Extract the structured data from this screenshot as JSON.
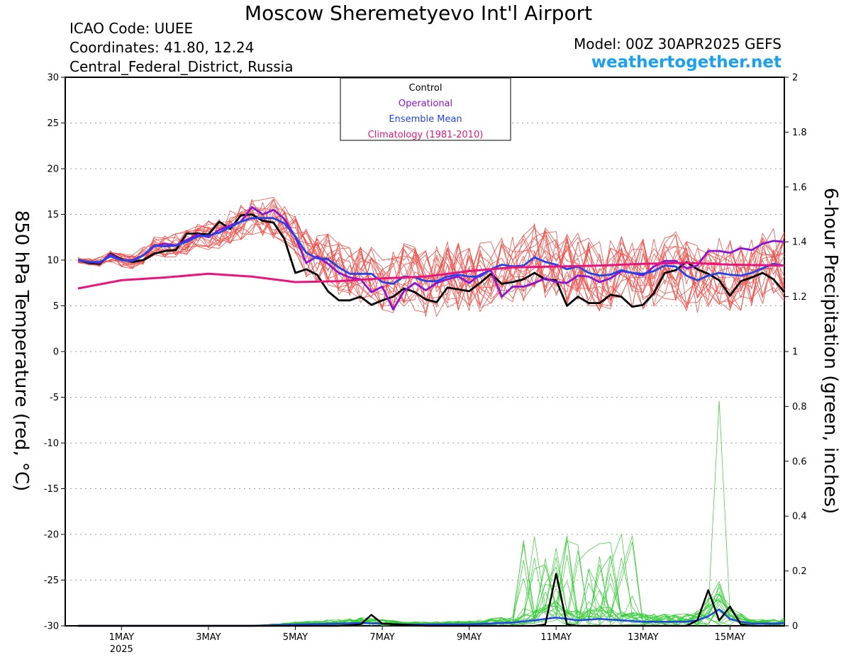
{
  "header": {
    "title": "Moscow Sheremetyevo Int'l Airport",
    "icao": "ICAO Code: UUEE",
    "coordinates": "Coordinates: 41.80, 12.24",
    "region": "Central_Federal_District, Russia",
    "model": "Model: 00Z 30APR2025 GEFS",
    "site": "weathertogether.net"
  },
  "chart_data": {
    "type": "line",
    "title": "Moscow Sheremetyevo Int'l Airport",
    "ylabel": "850 hPa Temperature (red, °C)",
    "y2label": "6-hour Precipitation (green, inches)",
    "xlim": [
      "2025-04-30T00Z",
      "2025-05-16T06Z"
    ],
    "ylim": [
      -30,
      30
    ],
    "y2lim": [
      0,
      2
    ],
    "grid": true,
    "legend_position": "top-center",
    "yticks": [
      "30",
      "25",
      "20",
      "15",
      "10",
      "5",
      "0",
      "-5",
      "-10",
      "-15",
      "-20",
      "-25",
      "-30"
    ],
    "y2ticks": [
      "2",
      "1.8",
      "1.6",
      "1.4",
      "1.2",
      "1",
      "0.8",
      "0.6",
      "0.4",
      "0.2",
      "0"
    ],
    "xticks": [
      {
        "label": "1MAY",
        "sub": "2025",
        "x": "2025-05-01"
      },
      {
        "label": "3MAY",
        "sub": "",
        "x": "2025-05-03"
      },
      {
        "label": "5MAY",
        "sub": "",
        "x": "2025-05-05"
      },
      {
        "label": "7MAY",
        "sub": "",
        "x": "2025-05-07"
      },
      {
        "label": "9MAY",
        "sub": "",
        "x": "2025-05-09"
      },
      {
        "label": "11MAY",
        "sub": "",
        "x": "2025-05-11"
      },
      {
        "label": "13MAY",
        "sub": "",
        "x": "2025-05-13"
      },
      {
        "label": "15MAY",
        "sub": "",
        "x": "2025-05-15"
      }
    ],
    "legend": [
      {
        "label": "Control",
        "color": "#000000"
      },
      {
        "label": "Operational",
        "color": "#8a14d6"
      },
      {
        "label": "Ensemble Mean",
        "color": "#2244e8"
      },
      {
        "label": "Climatology (1981-2010)",
        "color": "#e8157e"
      }
    ],
    "colors": {
      "members": "#f0504a",
      "precip": "#33cc33"
    },
    "day_offset_of_first_x": 0,
    "series": [
      {
        "name": "Control",
        "color": "#000000",
        "x": [
          0,
          0.25,
          0.5,
          0.75,
          1,
          1.25,
          1.5,
          1.75,
          2,
          2.25,
          2.5,
          2.75,
          3,
          3.25,
          3.5,
          3.75,
          4,
          4.25,
          4.5,
          4.75,
          5,
          5.25,
          5.5,
          5.75,
          6,
          6.25,
          6.5,
          6.75,
          7,
          7.25,
          7.5,
          7.75,
          8,
          8.25,
          8.5,
          8.75,
          9,
          9.25,
          9.5,
          9.75,
          10,
          10.25,
          10.5,
          10.75,
          11,
          11.25,
          11.5,
          11.75,
          12,
          12.25,
          12.5,
          12.75,
          13,
          13.25,
          13.5,
          13.75,
          14,
          14.25,
          14.5,
          14.75,
          15,
          15.25,
          15.5,
          15.75,
          16,
          16.25
        ],
        "values": [
          10,
          9.7,
          9.6,
          10.7,
          10.1,
          9.8,
          10.0,
          10.7,
          11.0,
          11.1,
          12.9,
          12.9,
          12.8,
          14.2,
          13.4,
          14.9,
          15.0,
          14.3,
          14.1,
          12.3,
          8.6,
          9.0,
          8.4,
          6.6,
          5.6,
          5.6,
          6.0,
          5.1,
          5.6,
          6.0,
          6.9,
          6.5,
          5.7,
          5.4,
          7.0,
          6.8,
          6.6,
          7.5,
          8.5,
          7.4,
          7.6,
          7.9,
          8.6,
          7.9,
          7.8,
          5.0,
          6.0,
          5.3,
          5.3,
          6.2,
          6.0,
          4.9,
          5.1,
          6.4,
          8.6,
          8.9,
          9.8,
          9.0,
          8.5,
          7.8,
          6.1,
          7.7,
          8.1,
          8.6,
          7.9,
          6.5
        ]
      },
      {
        "name": "Operational",
        "color": "#8a14d6",
        "x": [
          0,
          0.25,
          0.5,
          0.75,
          1,
          1.25,
          1.5,
          1.75,
          2,
          2.25,
          2.5,
          2.75,
          3,
          3.25,
          3.5,
          3.75,
          4,
          4.25,
          4.5,
          4.75,
          5,
          5.25,
          5.5,
          5.75,
          6,
          6.25,
          6.5,
          6.75,
          7,
          7.25,
          7.5,
          7.75,
          8,
          8.25,
          8.5,
          8.75,
          9,
          9.25,
          9.5,
          9.75,
          10,
          10.25,
          10.5,
          10.75,
          11,
          11.25,
          11.5,
          11.75,
          12,
          12.25,
          12.5,
          12.75,
          13,
          13.25,
          13.5,
          13.75,
          14,
          14.25,
          14.5,
          14.75,
          15,
          15.25,
          15.5,
          15.75,
          16,
          16.25
        ],
        "values": [
          10,
          9.8,
          9.7,
          10.6,
          10.0,
          10.0,
          10.5,
          11.5,
          11.8,
          11.6,
          12.2,
          12.8,
          12.5,
          13.3,
          13.8,
          14.2,
          15.8,
          15.0,
          15.5,
          14.5,
          12.5,
          9.7,
          10.4,
          9.6,
          8.6,
          8.1,
          7.9,
          6.5,
          7.1,
          4.6,
          6.6,
          7.5,
          6.7,
          7.5,
          7.9,
          8.2,
          7.5,
          8.4,
          8.9,
          6.0,
          7.1,
          7.1,
          7.5,
          8.0,
          7.6,
          7.5,
          8.3,
          8.2,
          7.6,
          8.0,
          8.8,
          8.6,
          8.3,
          9.3,
          9.9,
          9.9,
          9.1,
          9.4,
          11.0,
          11.0,
          10.8,
          11.3,
          11.1,
          11.8,
          12.1,
          12.0
        ]
      },
      {
        "name": "Ensemble Mean",
        "color": "#2244e8",
        "x": [
          0,
          0.25,
          0.5,
          0.75,
          1,
          1.25,
          1.5,
          1.75,
          2,
          2.25,
          2.5,
          2.75,
          3,
          3.25,
          3.5,
          3.75,
          4,
          4.25,
          4.5,
          4.75,
          5,
          5.25,
          5.5,
          5.75,
          6,
          6.25,
          6.5,
          6.75,
          7,
          7.25,
          7.5,
          7.75,
          8,
          8.25,
          8.5,
          8.75,
          9,
          9.25,
          9.5,
          9.75,
          10,
          10.25,
          10.5,
          10.75,
          11,
          11.25,
          11.5,
          11.75,
          12,
          12.25,
          12.5,
          12.75,
          13,
          13.25,
          13.5,
          13.75,
          14,
          14.25,
          14.5,
          14.75,
          15,
          15.25,
          15.5,
          15.75,
          16,
          16.25
        ],
        "values": [
          10,
          9.8,
          9.8,
          10.4,
          10.0,
          9.9,
          10.5,
          11.6,
          11.5,
          11.6,
          12.0,
          12.6,
          12.7,
          13.0,
          13.6,
          14.2,
          14.6,
          14.6,
          14.6,
          14.0,
          12.6,
          10.8,
          10.2,
          10.1,
          9.2,
          8.5,
          8.5,
          8.5,
          7.6,
          7.4,
          8.2,
          8.1,
          7.7,
          7.7,
          8.2,
          8.4,
          8.2,
          8.2,
          9.0,
          9.5,
          9.3,
          9.4,
          10.3,
          9.8,
          9.5,
          9.0,
          9.3,
          8.6,
          8.3,
          8.4,
          8.9,
          8.6,
          8.5,
          8.8,
          9.4,
          9.3,
          8.3,
          7.8,
          8.3,
          8.6,
          8.4,
          8.3,
          8.6,
          9.1,
          9.6,
          9.4
        ]
      },
      {
        "name": "Climatology (1981-2010)",
        "color": "#e8157e",
        "x": [
          0,
          1,
          2,
          3,
          4,
          5,
          6,
          7,
          8,
          9,
          10,
          11,
          12,
          13,
          14,
          15,
          16.25
        ],
        "values": [
          6.9,
          7.8,
          8.1,
          8.5,
          8.2,
          7.6,
          7.7,
          8.0,
          8.2,
          8.8,
          9.2,
          9.3,
          9.4,
          9.6,
          9.7,
          9.5,
          9.4
        ]
      }
    ],
    "control_precip": {
      "x": [
        0,
        1,
        2,
        3,
        4,
        5,
        6,
        6.5,
        6.75,
        7,
        8,
        9,
        10,
        10.5,
        10.75,
        11,
        11.25,
        11.5,
        11.75,
        12,
        13,
        14,
        14.25,
        14.5,
        14.75,
        15,
        15.25,
        15.5,
        15.75,
        16,
        16.25
      ],
      "values": [
        0,
        0,
        0,
        0,
        0,
        0,
        0,
        0.005,
        0.04,
        0.008,
        0,
        0,
        0,
        0,
        0.005,
        0.19,
        0.005,
        0,
        0,
        0,
        0,
        0,
        0.02,
        0.13,
        0.02,
        0.07,
        0.005,
        0,
        0,
        0,
        0
      ]
    },
    "mean_precip": {
      "x": [
        0,
        1,
        2,
        3,
        4,
        5,
        6,
        6.5,
        7,
        7.5,
        8,
        9,
        10,
        10.5,
        10.75,
        11,
        11.5,
        12,
        12.5,
        13,
        13.5,
        14,
        14.25,
        14.5,
        14.75,
        15,
        15.25,
        15.5,
        16,
        16.25
      ],
      "values": [
        0,
        0,
        0,
        0,
        0,
        0.005,
        0.008,
        0.01,
        0.008,
        0.005,
        0.005,
        0.006,
        0.012,
        0.02,
        0.025,
        0.03,
        0.02,
        0.025,
        0.02,
        0.015,
        0.015,
        0.015,
        0.02,
        0.035,
        0.06,
        0.025,
        0.015,
        0.008,
        0.008,
        0.01
      ]
    },
    "ensemble_member_note": "Ensemble members shown as thin red (temperature) and green (precipitation) lines."
  }
}
